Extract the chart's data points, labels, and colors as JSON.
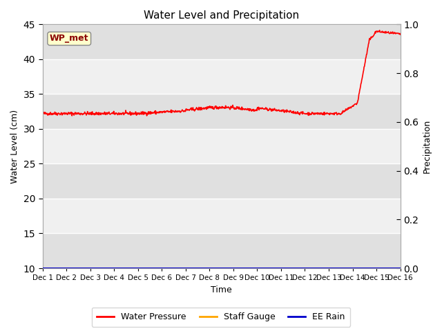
{
  "title": "Water Level and Precipitation",
  "xlabel": "Time",
  "ylabel_left": "Water Level (cm)",
  "ylabel_right": "Precipitation",
  "ylim_left": [
    10,
    45
  ],
  "ylim_right": [
    0.0,
    1.0
  ],
  "yticks_left": [
    10,
    15,
    20,
    25,
    30,
    35,
    40,
    45
  ],
  "yticks_right": [
    0.0,
    0.2,
    0.4,
    0.6,
    0.8,
    1.0
  ],
  "date_labels": [
    "Dec 1",
    "Dec 2",
    "Dec 3",
    "Dec 4",
    "Dec 5",
    "Dec 6",
    "Dec 7",
    "Dec 8",
    "Dec 9",
    "Dec 10",
    "Dec 11",
    "Dec 12",
    "Dec 13",
    "Dec 14",
    "Dec 15",
    "Dec 16"
  ],
  "annotation_text": "WP_met",
  "annotation_box_color": "#ffffcc",
  "annotation_text_color": "#8b0000",
  "water_pressure_color": "#ff0000",
  "staff_gauge_color": "#ffa500",
  "ee_rain_color": "#0000cc",
  "background_color": "#ffffff",
  "band_color_light": "#f0f0f0",
  "band_color_dark": "#e0e0e0",
  "legend_labels": [
    "Water Pressure",
    "Staff Gauge",
    "EE Rain"
  ],
  "grid_color": "#d0d0d0",
  "spine_color": "#aaaaaa"
}
